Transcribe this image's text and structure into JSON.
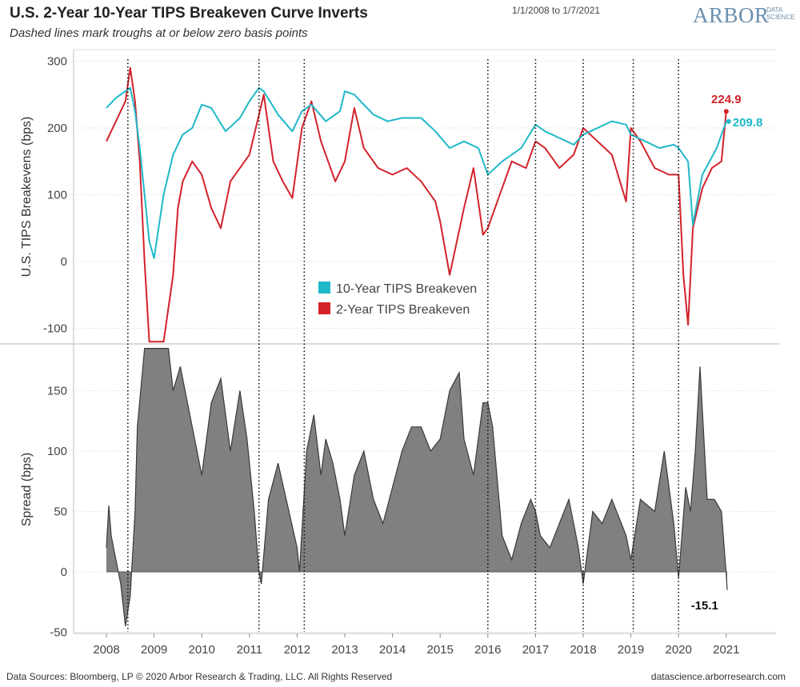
{
  "header": {
    "title": "U.S. 2-Year 10-Year TIPS Breakeven Curve Inverts",
    "subtitle": "Dashed lines mark troughs at or below zero basis points",
    "date_range": "1/1/2008 to 1/7/2021"
  },
  "logo": {
    "main": "ARBOR",
    "sub1": "DATA",
    "sub2": "SCIENCE"
  },
  "footer": {
    "sources": "Data Sources: Bloomberg, LP © 2020 Arbor Research & Trading, LLC. All Rights Reserved",
    "site": "datascience.arborresearch.com"
  },
  "colors": {
    "ten_year": "#1fb8c9",
    "two_year": "#d3222a",
    "spread_fill": "#808080",
    "spread_line": "#3a3a3a"
  },
  "chart_data": [
    {
      "type": "line",
      "ylabel": "U.S. TIPS Breakevens (bps)",
      "ylim": [
        -120,
        300
      ],
      "yticks": [
        -100,
        0,
        100,
        200,
        300
      ],
      "legend": [
        "10-Year TIPS Breakeven",
        "2-Year TIPS Breakeven"
      ],
      "legend_position": "center",
      "end_labels": {
        "two_year": "224.9",
        "ten_year": "209.8"
      },
      "series": [
        {
          "name": "10-Year TIPS Breakeven",
          "color": "#1fb8c9",
          "x": [
            2008.0,
            2008.2,
            2008.4,
            2008.5,
            2008.6,
            2008.7,
            2008.8,
            2008.9,
            2009.0,
            2009.2,
            2009.4,
            2009.6,
            2009.8,
            2010.0,
            2010.2,
            2010.5,
            2010.8,
            2011.0,
            2011.2,
            2011.3,
            2011.6,
            2011.9,
            2012.1,
            2012.3,
            2012.6,
            2012.9,
            2013.0,
            2013.2,
            2013.4,
            2013.6,
            2013.9,
            2014.2,
            2014.6,
            2014.9,
            2015.2,
            2015.5,
            2015.8,
            2016.0,
            2016.3,
            2016.7,
            2017.0,
            2017.2,
            2017.5,
            2017.8,
            2018.0,
            2018.3,
            2018.6,
            2018.9,
            2019.0,
            2019.3,
            2019.6,
            2019.9,
            2020.0,
            2020.2,
            2020.3,
            2020.5,
            2020.8,
            2021.0
          ],
          "values": [
            230,
            245,
            255,
            260,
            225,
            170,
            100,
            30,
            5,
            100,
            160,
            190,
            200,
            235,
            230,
            195,
            215,
            240,
            260,
            255,
            220,
            195,
            225,
            235,
            210,
            225,
            255,
            250,
            235,
            220,
            210,
            215,
            215,
            195,
            170,
            180,
            170,
            130,
            150,
            170,
            205,
            195,
            185,
            175,
            190,
            200,
            210,
            205,
            190,
            180,
            170,
            175,
            170,
            150,
            55,
            130,
            170,
            209.8
          ]
        },
        {
          "name": "2-Year TIPS Breakeven",
          "color": "#d3222a",
          "x": [
            2008.0,
            2008.2,
            2008.4,
            2008.5,
            2008.6,
            2008.7,
            2008.8,
            2008.9,
            2009.0,
            2009.2,
            2009.4,
            2009.5,
            2009.6,
            2009.8,
            2010.0,
            2010.2,
            2010.4,
            2010.6,
            2010.8,
            2011.0,
            2011.3,
            2011.5,
            2011.7,
            2011.9,
            2012.1,
            2012.3,
            2012.5,
            2012.8,
            2013.0,
            2013.2,
            2013.4,
            2013.7,
            2014.0,
            2014.3,
            2014.6,
            2014.9,
            2015.0,
            2015.2,
            2015.5,
            2015.7,
            2015.9,
            2016.0,
            2016.2,
            2016.5,
            2016.8,
            2017.0,
            2017.2,
            2017.5,
            2017.8,
            2018.0,
            2018.3,
            2018.6,
            2018.9,
            2019.0,
            2019.2,
            2019.5,
            2019.8,
            2020.0,
            2020.1,
            2020.2,
            2020.3,
            2020.5,
            2020.7,
            2020.9,
            2021.0
          ],
          "values": [
            180,
            210,
            240,
            290,
            240,
            150,
            0,
            -120,
            -120,
            -120,
            -20,
            80,
            120,
            150,
            130,
            80,
            50,
            120,
            140,
            160,
            250,
            150,
            120,
            95,
            200,
            240,
            180,
            120,
            150,
            230,
            170,
            140,
            130,
            140,
            120,
            90,
            60,
            -20,
            80,
            140,
            40,
            50,
            90,
            150,
            140,
            180,
            170,
            140,
            160,
            200,
            180,
            160,
            90,
            200,
            180,
            140,
            130,
            130,
            -20,
            -95,
            50,
            110,
            140,
            150,
            224.9
          ]
        }
      ]
    },
    {
      "type": "area",
      "ylabel": "Spread (bps)",
      "ylim": [
        -55,
        185
      ],
      "yticks": [
        -50,
        0,
        50,
        100,
        150
      ],
      "end_label": "-15.1",
      "series": [
        {
          "name": "Spread",
          "x": [
            2008.0,
            2008.05,
            2008.1,
            2008.2,
            2008.3,
            2008.4,
            2008.5,
            2008.6,
            2008.65,
            2008.8,
            2008.9,
            2009.0,
            2009.3,
            2009.4,
            2009.55,
            2009.7,
            2009.85,
            2010.0,
            2010.2,
            2010.4,
            2010.5,
            2010.6,
            2010.8,
            2010.95,
            2011.1,
            2011.2,
            2011.25,
            2011.4,
            2011.6,
            2011.8,
            2012.0,
            2012.05,
            2012.2,
            2012.35,
            2012.5,
            2012.6,
            2012.75,
            2012.9,
            2013.0,
            2013.2,
            2013.4,
            2013.6,
            2013.8,
            2014.0,
            2014.2,
            2014.4,
            2014.6,
            2014.8,
            2015.0,
            2015.2,
            2015.4,
            2015.5,
            2015.7,
            2015.9,
            2016.0,
            2016.1,
            2016.3,
            2016.5,
            2016.7,
            2016.9,
            2017.0,
            2017.1,
            2017.3,
            2017.5,
            2017.7,
            2017.9,
            2018.0,
            2018.2,
            2018.4,
            2018.6,
            2018.8,
            2018.9,
            2019.0,
            2019.2,
            2019.5,
            2019.7,
            2019.9,
            2020.0,
            2020.15,
            2020.25,
            2020.35,
            2020.45,
            2020.6,
            2020.75,
            2020.9,
            2021.0,
            2021.02
          ],
          "values": [
            20,
            55,
            30,
            10,
            -10,
            -45,
            -20,
            50,
            120,
            185,
            185,
            185,
            185,
            150,
            170,
            140,
            110,
            80,
            140,
            160,
            130,
            100,
            150,
            110,
            50,
            0,
            -10,
            60,
            90,
            55,
            20,
            0,
            100,
            130,
            80,
            110,
            90,
            60,
            30,
            80,
            100,
            60,
            40,
            70,
            100,
            120,
            120,
            100,
            110,
            150,
            165,
            110,
            80,
            140,
            140,
            120,
            30,
            10,
            40,
            60,
            50,
            30,
            20,
            40,
            60,
            20,
            -10,
            50,
            40,
            60,
            40,
            30,
            10,
            60,
            50,
            100,
            40,
            -5,
            70,
            50,
            100,
            170,
            60,
            60,
            50,
            -2,
            -15.1
          ]
        }
      ]
    }
  ],
  "x_axis": {
    "ticks": [
      "2008",
      "2009",
      "2010",
      "2011",
      "2012",
      "2013",
      "2014",
      "2015",
      "2016",
      "2017",
      "2018",
      "2019",
      "2020",
      "2021"
    ]
  },
  "trough_dates": [
    2008.45,
    2011.2,
    2012.15,
    2016.0,
    2017.0,
    2018.0,
    2019.05,
    2020.0
  ]
}
